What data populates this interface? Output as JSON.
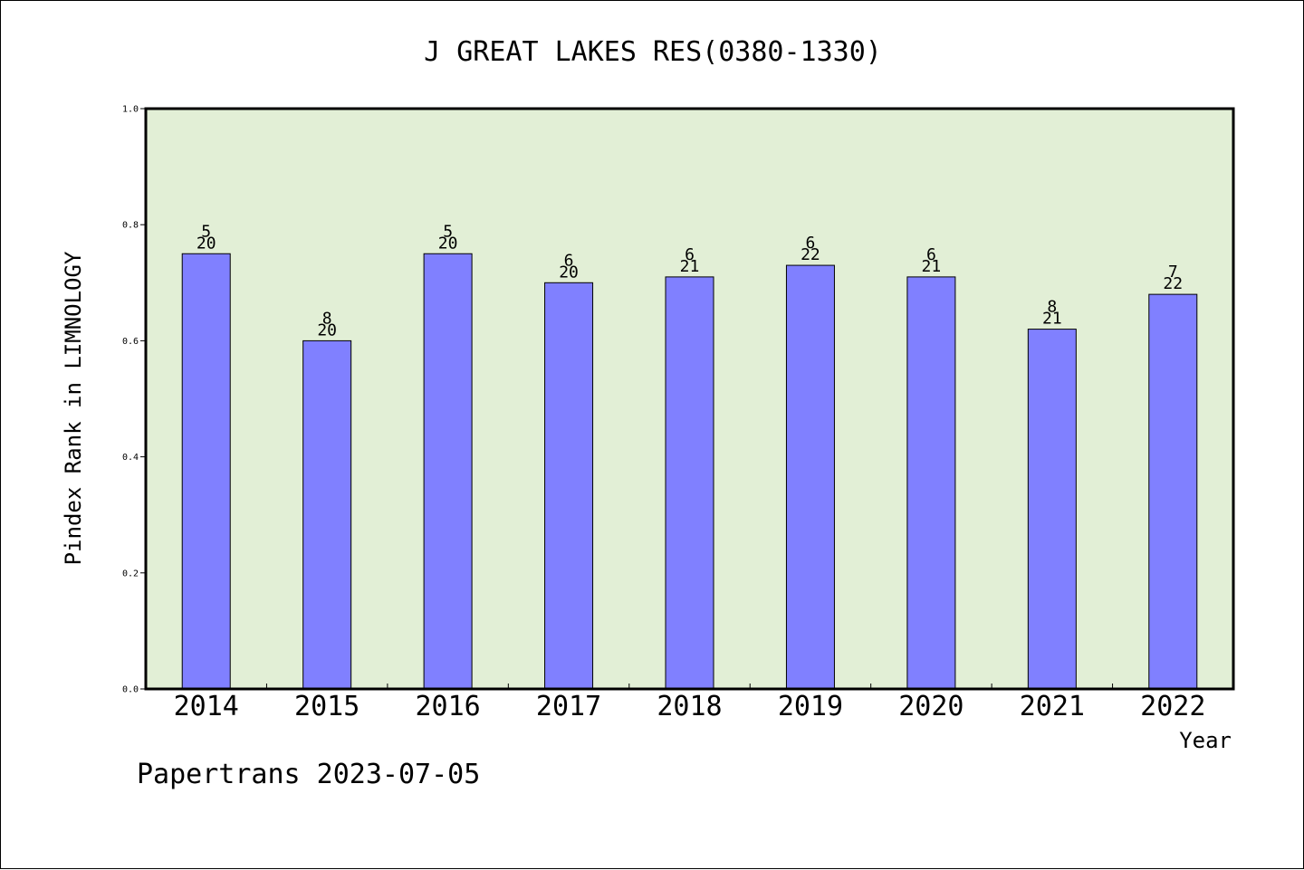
{
  "chart_data": {
    "type": "bar",
    "title": "J GREAT LAKES RES(0380-1330)",
    "xlabel": "Year",
    "ylabel": "Pindex Rank in LIMNOLOGY",
    "categories": [
      "2014",
      "2015",
      "2016",
      "2017",
      "2018",
      "2019",
      "2020",
      "2021",
      "2022"
    ],
    "values": [
      0.75,
      0.6,
      0.75,
      0.7,
      0.71,
      0.73,
      0.71,
      0.62,
      0.68
    ],
    "rank": [
      "5",
      "8",
      "5",
      "6",
      "6",
      "6",
      "6",
      "8",
      "7"
    ],
    "total": [
      "20",
      "20",
      "20",
      "20",
      "21",
      "22",
      "21",
      "21",
      "22"
    ],
    "ylim": [
      0,
      1.0
    ],
    "yticks": [
      "0.0",
      "0.2",
      "0.4",
      "0.6",
      "0.8",
      "1.0"
    ],
    "grid": false,
    "colors": {
      "plot_background": "#e2efd6",
      "bar_fill": "#8080ff",
      "bar_stroke": "#000000"
    }
  },
  "footer": {
    "text": "Papertrans 2023-07-05"
  }
}
